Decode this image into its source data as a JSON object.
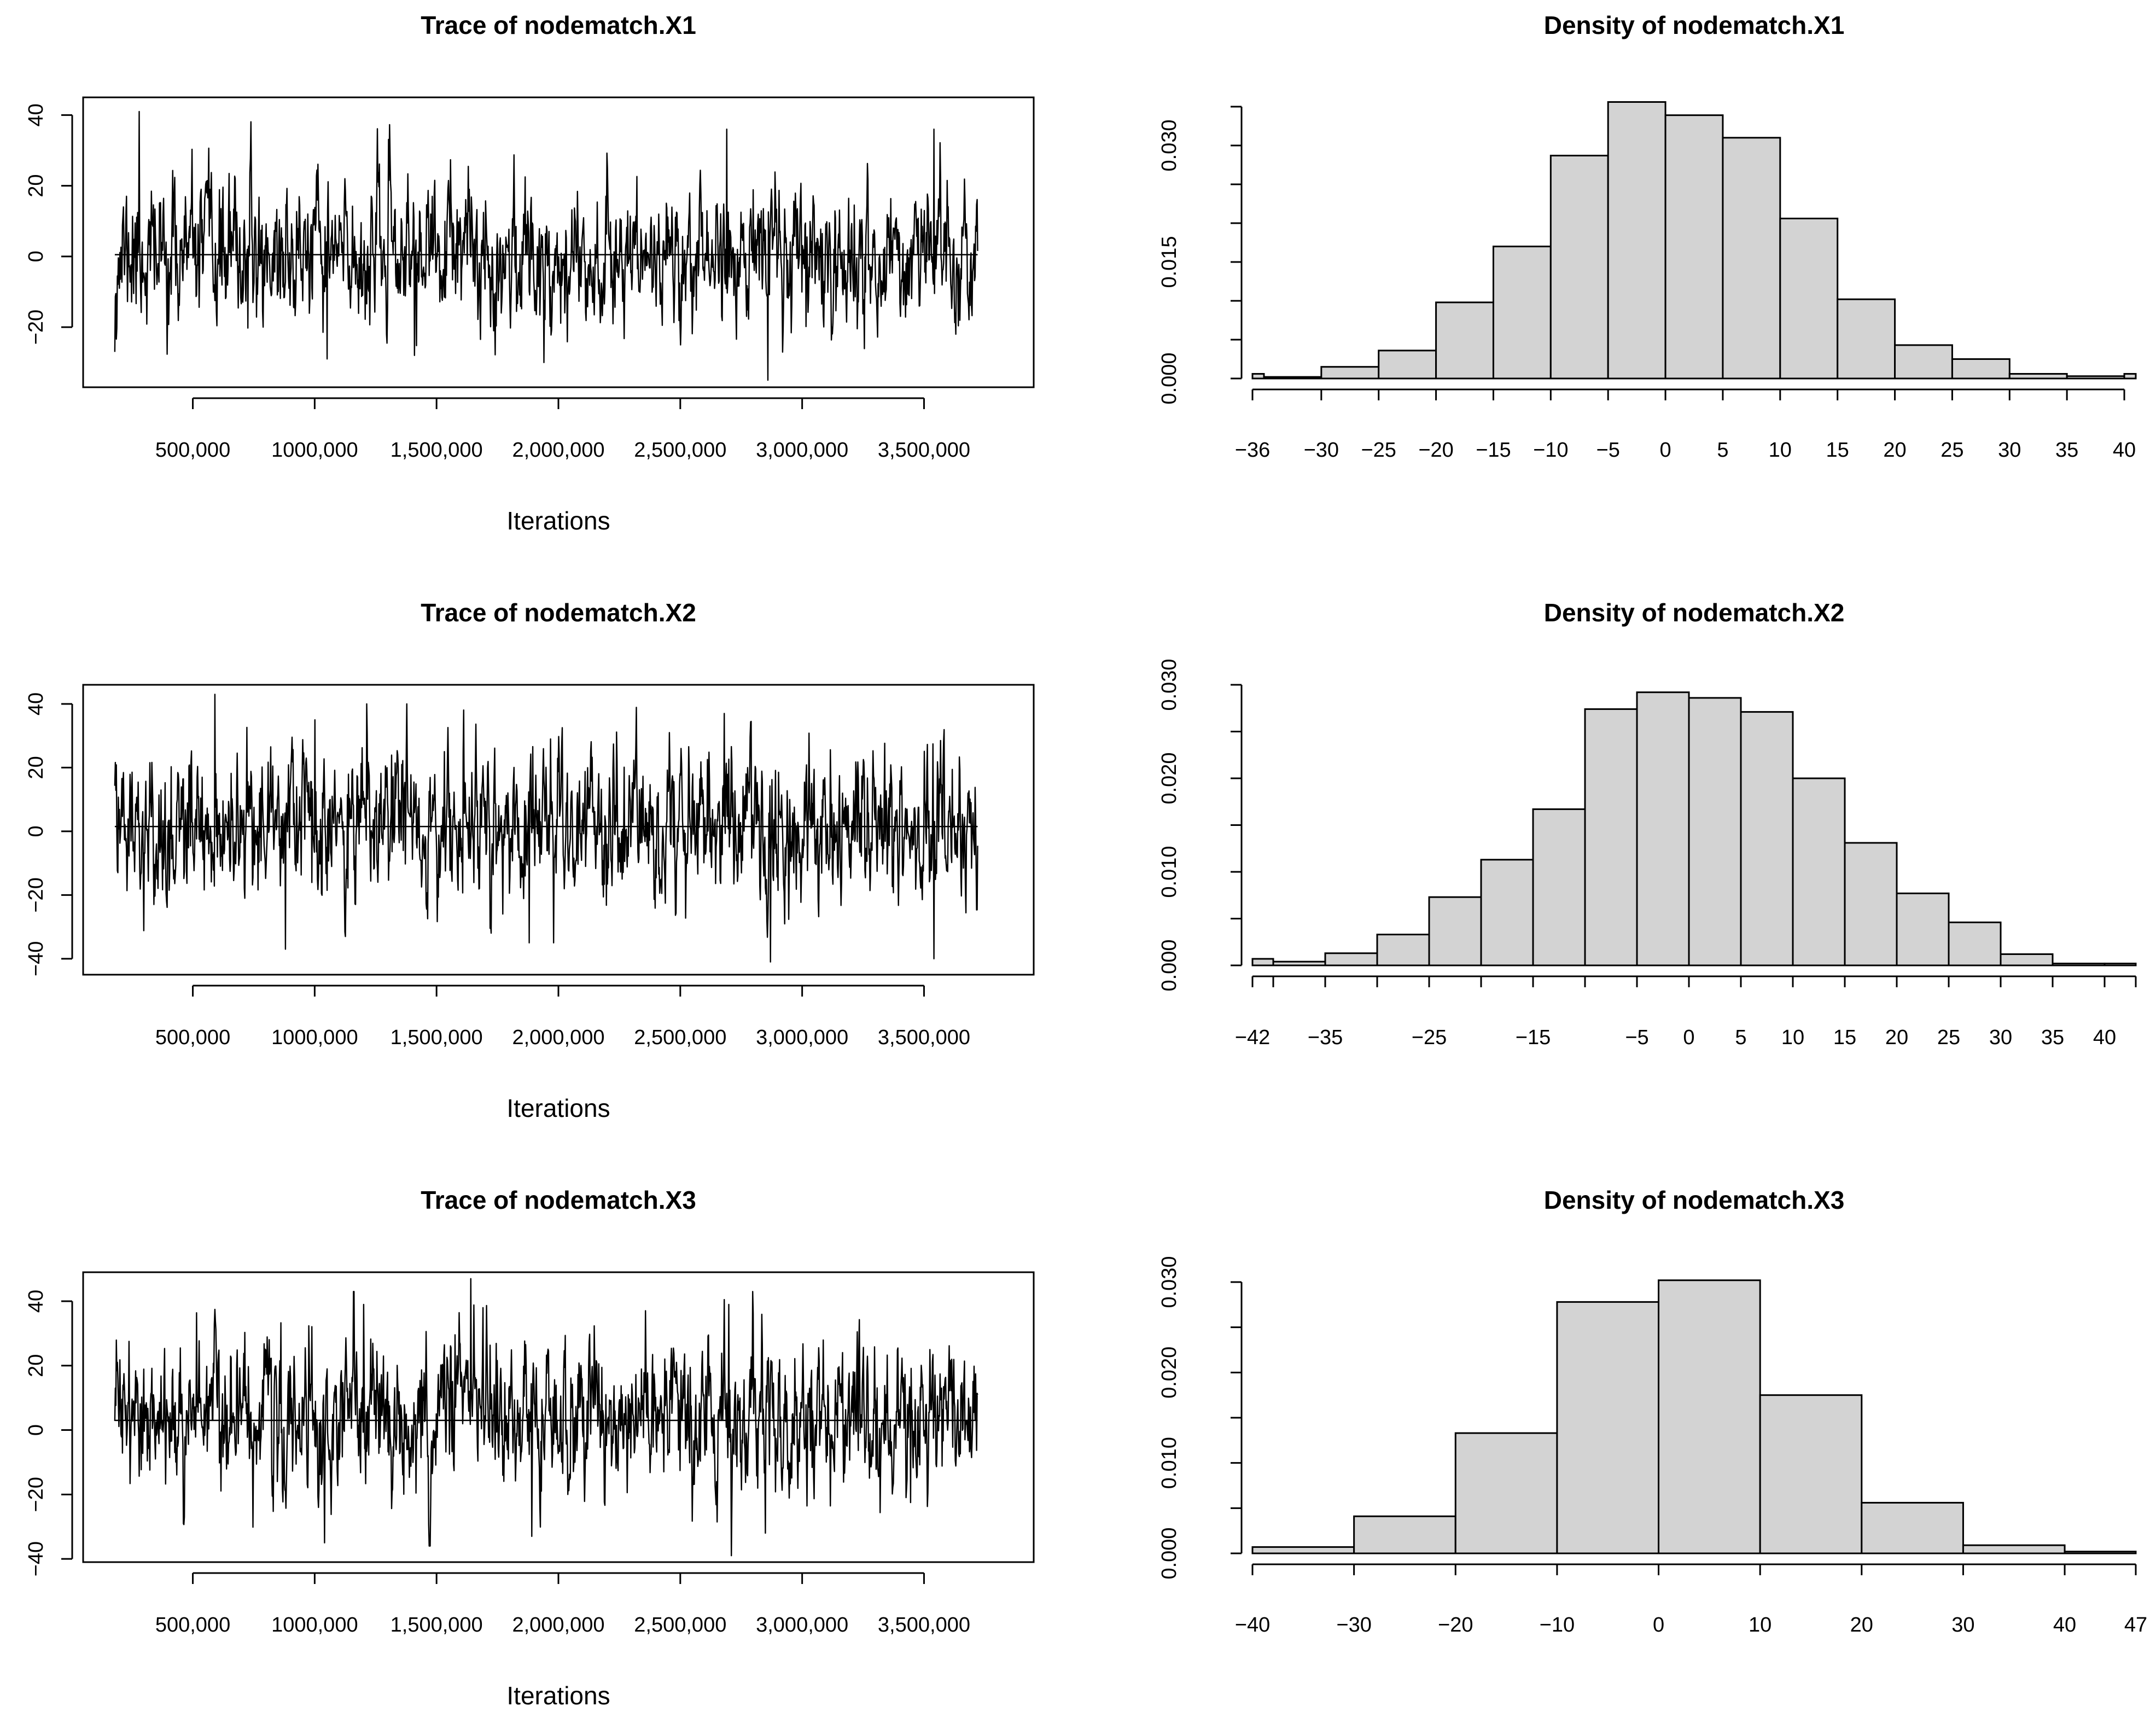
{
  "chart_data": [
    {
      "type": "line",
      "title": "Trace of nodematch.X1",
      "xlabel": "Iterations",
      "ylabel": "",
      "xlim": [
        50000,
        3950000
      ],
      "ylim": [
        -37,
        45
      ],
      "x_ticks": [
        500000,
        1000000,
        1500000,
        2000000,
        2500000,
        3000000,
        3500000
      ],
      "x_tick_labels": [
        "500,000",
        "1000,000",
        "1,500,000",
        "2,000,000",
        "2,500,000",
        "3,000,000",
        "3,500,000"
      ],
      "y_ticks": [
        -20,
        0,
        20,
        40
      ],
      "y_tick_labels": [
        "−20",
        "0",
        "20",
        "40"
      ],
      "x_range": [
        180000,
        3720000
      ],
      "mean": 0.5,
      "sd": 10,
      "extremes": [
        {
          "x": 280000,
          "y": 41
        },
        {
          "x": 2860000,
          "y": -35
        },
        {
          "x": 2690000,
          "y": 36
        },
        {
          "x": 3540000,
          "y": 36
        },
        {
          "x": 1940000,
          "y": -30
        },
        {
          "x": 1050000,
          "y": -29
        },
        {
          "x": 180000,
          "y": -27
        },
        {
          "x": 1410000,
          "y": -28
        }
      ],
      "seed": 11
    },
    {
      "type": "bar",
      "title": "Density of nodematch.X1",
      "xlabel": "",
      "ylabel": "",
      "xlim": [
        -36,
        41
      ],
      "ylim": [
        0,
        0.035
      ],
      "x_ticks": [
        -36,
        -30,
        -25,
        -20,
        -15,
        -10,
        -5,
        0,
        5,
        10,
        15,
        20,
        25,
        30,
        35,
        40
      ],
      "x_tick_labels": [
        "−36",
        "−30",
        "−25",
        "−20",
        "−15",
        "−10",
        "−5",
        "0",
        "5",
        "10",
        "15",
        "20",
        "25",
        "30",
        "35",
        "40"
      ],
      "y_ticks": [
        0,
        0.005,
        0.01,
        0.015,
        0.02,
        0.025,
        0.03,
        0.035
      ],
      "y_tick_labels": [
        "0.000",
        "",
        "",
        "0.015",
        "",
        "",
        "0.030",
        ""
      ],
      "bins": [
        {
          "x0": -36,
          "x1": -35,
          "density": 0.0006
        },
        {
          "x0": -35,
          "x1": -30,
          "density": 0.0002
        },
        {
          "x0": -30,
          "x1": -25,
          "density": 0.0015
        },
        {
          "x0": -25,
          "x1": -20,
          "density": 0.0036
        },
        {
          "x0": -20,
          "x1": -15,
          "density": 0.0098
        },
        {
          "x0": -15,
          "x1": -10,
          "density": 0.017
        },
        {
          "x0": -10,
          "x1": -5,
          "density": 0.0287
        },
        {
          "x0": -5,
          "x1": 0,
          "density": 0.0356
        },
        {
          "x0": 0,
          "x1": 5,
          "density": 0.0339
        },
        {
          "x0": 5,
          "x1": 10,
          "density": 0.031
        },
        {
          "x0": 10,
          "x1": 15,
          "density": 0.0206
        },
        {
          "x0": 15,
          "x1": 20,
          "density": 0.0102
        },
        {
          "x0": 20,
          "x1": 25,
          "density": 0.0043
        },
        {
          "x0": 25,
          "x1": 30,
          "density": 0.0025
        },
        {
          "x0": 30,
          "x1": 35,
          "density": 0.0006
        },
        {
          "x0": 35,
          "x1": 40,
          "density": 0.0003
        },
        {
          "x0": 40,
          "x1": 41,
          "density": 0.0006
        }
      ]
    },
    {
      "type": "line",
      "title": "Trace of nodematch.X2",
      "xlabel": "Iterations",
      "ylabel": "",
      "xlim": [
        50000,
        3950000
      ],
      "ylim": [
        -45,
        46
      ],
      "x_ticks": [
        500000,
        1000000,
        1500000,
        2000000,
        2500000,
        3000000,
        3500000
      ],
      "x_tick_labels": [
        "500,000",
        "1000,000",
        "1,500,000",
        "2,000,000",
        "2,500,000",
        "3,000,000",
        "3,500,000"
      ],
      "y_ticks": [
        -40,
        -20,
        0,
        20,
        40
      ],
      "y_tick_labels": [
        "−40",
        "−20",
        "0",
        "20",
        "40"
      ],
      "x_range": [
        180000,
        3720000
      ],
      "mean": 1.5,
      "sd": 12,
      "extremes": [
        {
          "x": 590000,
          "y": 43
        },
        {
          "x": 2870000,
          "y": -41
        },
        {
          "x": 3540000,
          "y": -40
        },
        {
          "x": 2680000,
          "y": 37
        },
        {
          "x": 880000,
          "y": -37
        },
        {
          "x": 1880000,
          "y": -35
        },
        {
          "x": 1980000,
          "y": -35
        },
        {
          "x": 1000000,
          "y": 35
        }
      ],
      "seed": 27
    },
    {
      "type": "bar",
      "title": "Density of nodematch.X2",
      "xlabel": "",
      "ylabel": "",
      "xlim": [
        -42,
        43
      ],
      "ylim": [
        0,
        0.03
      ],
      "x_ticks": [
        -42,
        -40,
        -35,
        -30,
        -25,
        -20,
        -15,
        -10,
        -5,
        0,
        5,
        10,
        15,
        20,
        25,
        30,
        35,
        40,
        43
      ],
      "x_tick_labels": [
        "−42",
        "",
        "−35",
        "",
        "−25",
        "",
        "−15",
        "",
        "−5",
        "0",
        "5",
        "10",
        "15",
        "20",
        "25",
        "30",
        "35",
        "40",
        ""
      ],
      "y_ticks": [
        0,
        0.005,
        0.01,
        0.015,
        0.02,
        0.025,
        0.03
      ],
      "y_tick_labels": [
        "0.000",
        "",
        "0.010",
        "",
        "0.020",
        "",
        "0.030"
      ],
      "bins": [
        {
          "x0": -42,
          "x1": -40,
          "density": 0.0007
        },
        {
          "x0": -40,
          "x1": -35,
          "density": 0.0004
        },
        {
          "x0": -35,
          "x1": -30,
          "density": 0.0013
        },
        {
          "x0": -30,
          "x1": -25,
          "density": 0.0033
        },
        {
          "x0": -25,
          "x1": -20,
          "density": 0.0073
        },
        {
          "x0": -20,
          "x1": -15,
          "density": 0.0113
        },
        {
          "x0": -15,
          "x1": -10,
          "density": 0.0167
        },
        {
          "x0": -10,
          "x1": -5,
          "density": 0.0274
        },
        {
          "x0": -5,
          "x1": 0,
          "density": 0.0292
        },
        {
          "x0": 0,
          "x1": 5,
          "density": 0.0286
        },
        {
          "x0": 5,
          "x1": 10,
          "density": 0.0271
        },
        {
          "x0": 10,
          "x1": 15,
          "density": 0.02
        },
        {
          "x0": 15,
          "x1": 20,
          "density": 0.0131
        },
        {
          "x0": 20,
          "x1": 25,
          "density": 0.0077
        },
        {
          "x0": 25,
          "x1": 30,
          "density": 0.0046
        },
        {
          "x0": 30,
          "x1": 35,
          "density": 0.0012
        },
        {
          "x0": 35,
          "x1": 40,
          "density": 0.0002
        },
        {
          "x0": 40,
          "x1": 43,
          "density": 0.0002
        }
      ]
    },
    {
      "type": "line",
      "title": "Trace of nodematch.X3",
      "xlabel": "Iterations",
      "ylabel": "",
      "xlim": [
        50000,
        3950000
      ],
      "ylim": [
        -41,
        49
      ],
      "x_ticks": [
        500000,
        1000000,
        1500000,
        2000000,
        2500000,
        3000000,
        3500000
      ],
      "x_tick_labels": [
        "500,000",
        "1000,000",
        "1,500,000",
        "2,000,000",
        "2,500,000",
        "3,000,000",
        "3,500,000"
      ],
      "y_ticks": [
        -40,
        -20,
        0,
        20,
        40
      ],
      "y_tick_labels": [
        "−40",
        "−20",
        "0",
        "20",
        "40"
      ],
      "x_range": [
        180000,
        3720000
      ],
      "mean": 3,
      "sd": 12,
      "extremes": [
        {
          "x": 1640000,
          "y": 47
        },
        {
          "x": 2710000,
          "y": -39
        },
        {
          "x": 1040000,
          "y": -35
        },
        {
          "x": 1890000,
          "y": -33
        },
        {
          "x": 2700000,
          "y": 39
        },
        {
          "x": 1690000,
          "y": 38
        },
        {
          "x": 1200000,
          "y": 39
        },
        {
          "x": 2850000,
          "y": -32
        }
      ],
      "seed": 43
    },
    {
      "type": "bar",
      "title": "Density of nodematch.X3",
      "xlabel": "",
      "ylabel": "",
      "xlim": [
        -40,
        47
      ],
      "ylim": [
        0,
        0.03
      ],
      "x_ticks": [
        -40,
        -30,
        -20,
        -10,
        0,
        10,
        20,
        30,
        40,
        47
      ],
      "x_tick_labels": [
        "−40",
        "−30",
        "−20",
        "−10",
        "0",
        "10",
        "20",
        "30",
        "40",
        "47"
      ],
      "y_ticks": [
        0,
        0.005,
        0.01,
        0.015,
        0.02,
        0.025,
        0.03
      ],
      "y_tick_labels": [
        "0.000",
        "",
        "0.010",
        "",
        "0.020",
        "",
        "0.030"
      ],
      "bins": [
        {
          "x0": -40,
          "x1": -30,
          "density": 0.0007
        },
        {
          "x0": -30,
          "x1": -20,
          "density": 0.0041
        },
        {
          "x0": -20,
          "x1": -10,
          "density": 0.0133
        },
        {
          "x0": -10,
          "x1": 0,
          "density": 0.0278
        },
        {
          "x0": 0,
          "x1": 10,
          "density": 0.0302
        },
        {
          "x0": 10,
          "x1": 20,
          "density": 0.0175
        },
        {
          "x0": 20,
          "x1": 30,
          "density": 0.0056
        },
        {
          "x0": 30,
          "x1": 40,
          "density": 0.0009
        },
        {
          "x0": 40,
          "x1": 47,
          "density": 0.0002
        }
      ]
    }
  ]
}
